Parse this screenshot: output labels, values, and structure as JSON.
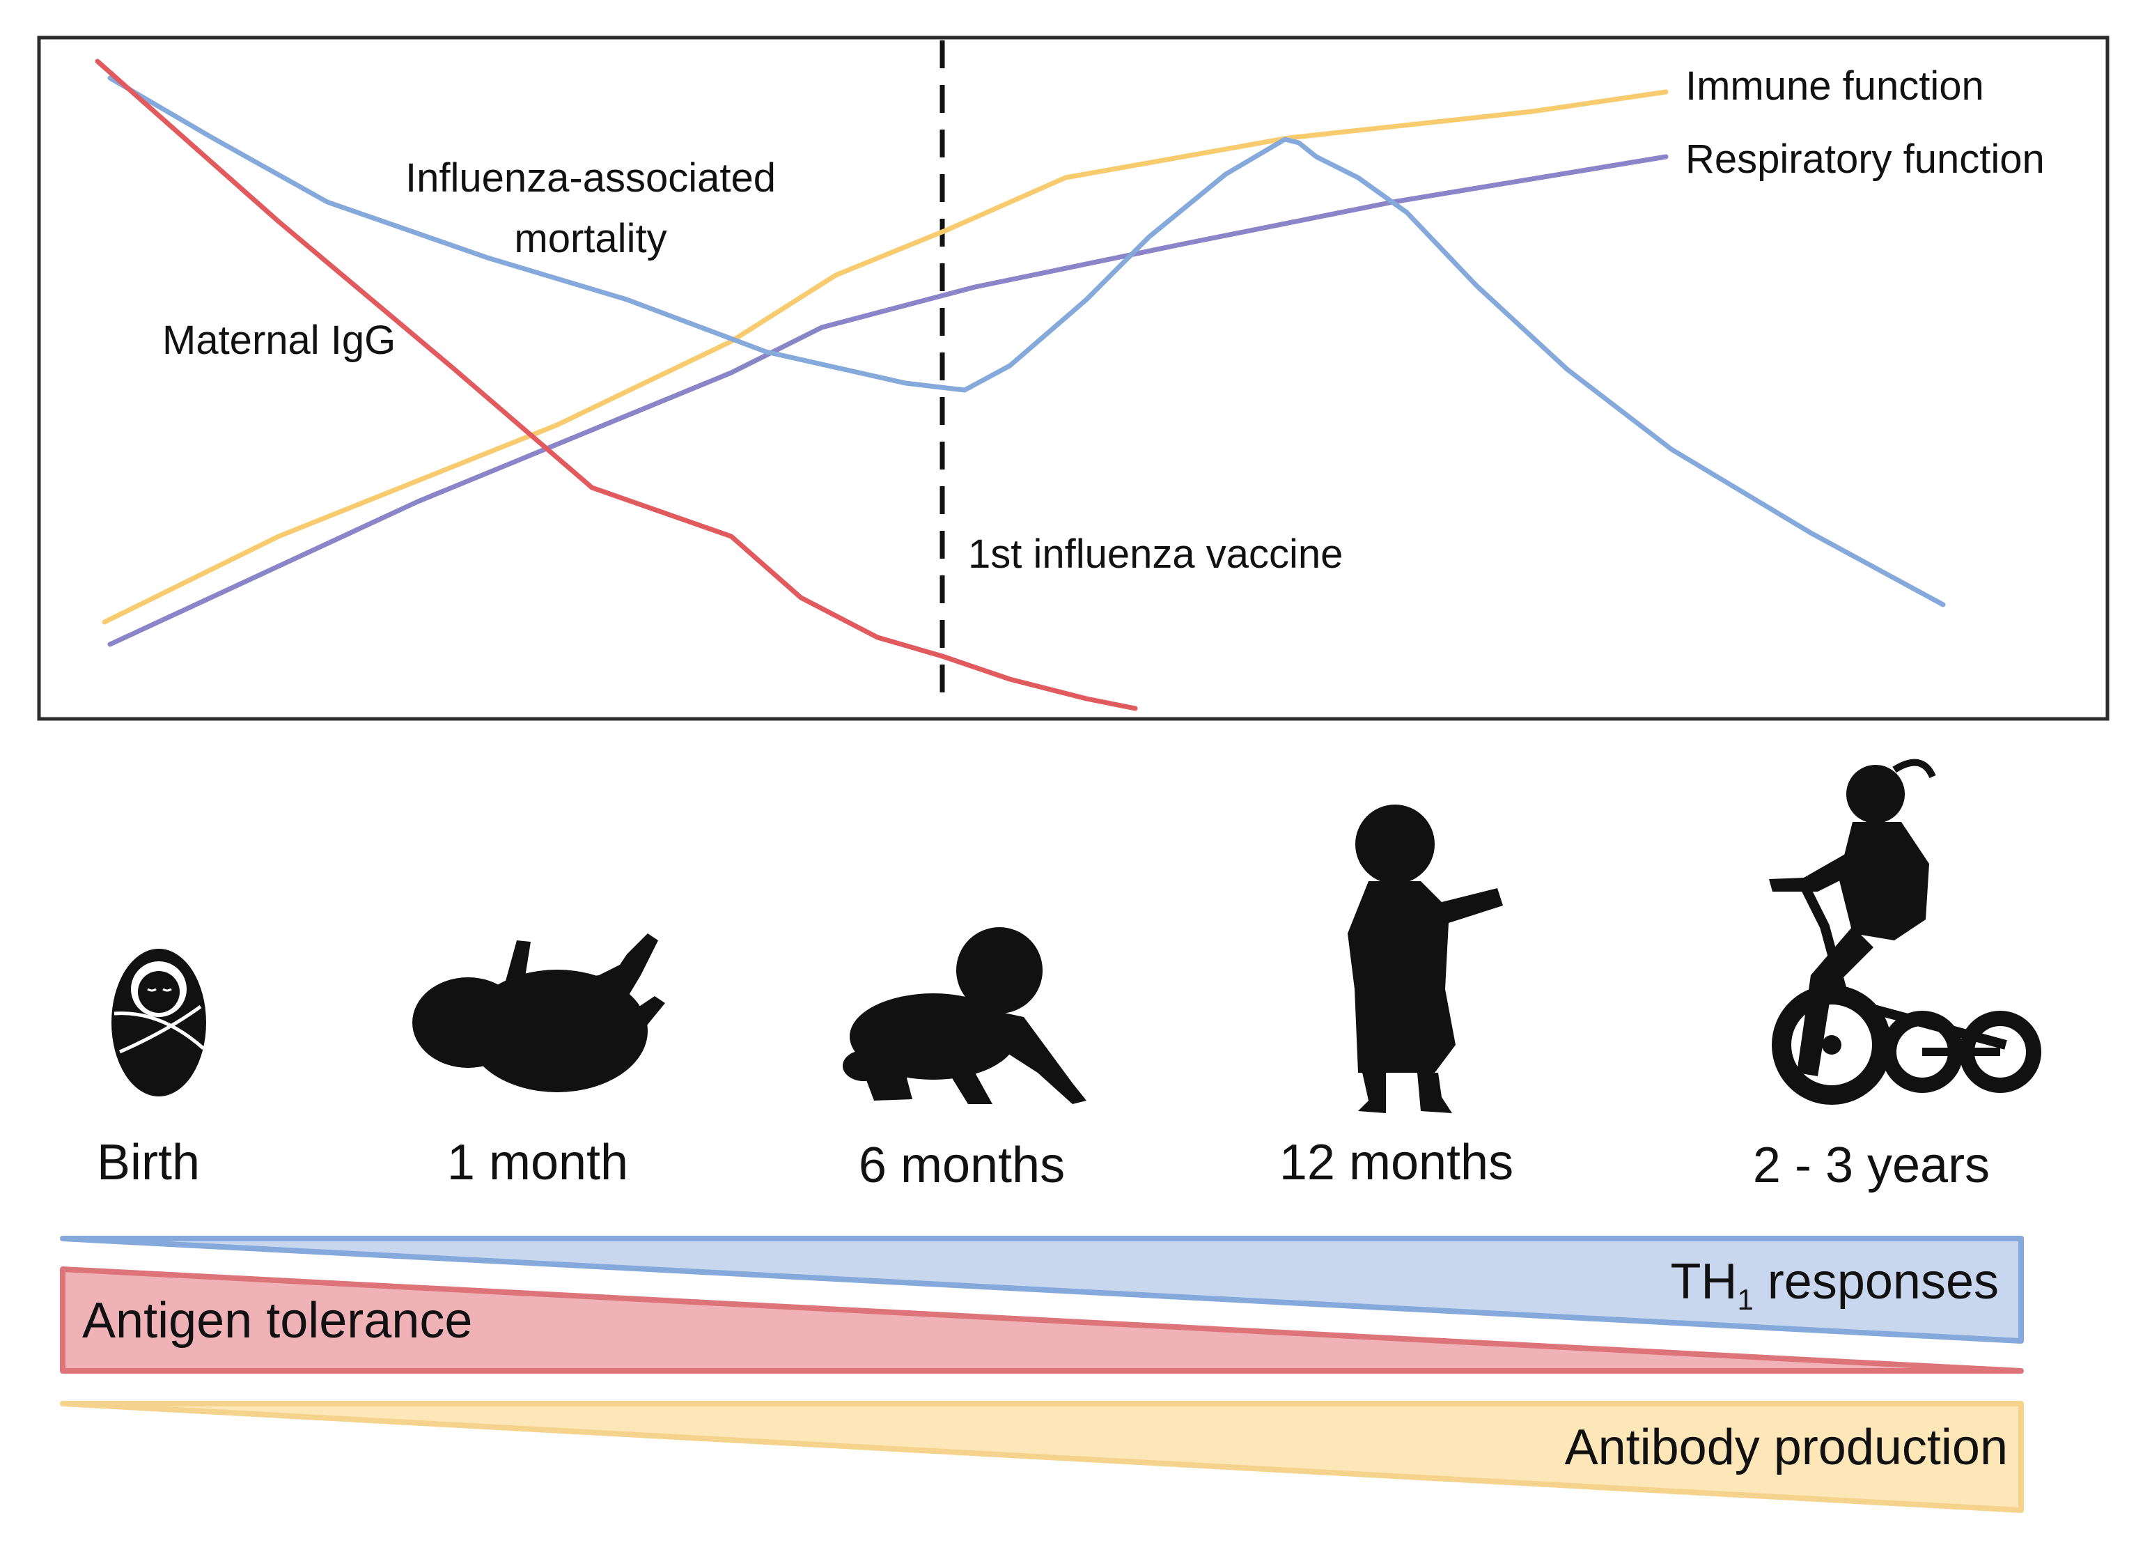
{
  "chart_data": {
    "type": "line",
    "series": [
      {
        "name": "Maternal IgG",
        "color": "#e05a5e"
      },
      {
        "name": "Influenza-associated mortality",
        "color": "#86a9dc"
      },
      {
        "name": "Immune function",
        "color": "#f8cb6f"
      },
      {
        "name": "Respiratory function",
        "color": "#8a84c8"
      }
    ],
    "annotations": {
      "maternal_igg": "Maternal IgG",
      "mortality_line1": "Influenza-associated",
      "mortality_line2": "mortality",
      "immune": "Immune function",
      "respiratory": "Respiratory function",
      "vaccine": "1st influenza vaccine"
    }
  },
  "timeline": {
    "ages": [
      "Birth",
      "1 month",
      "6 months",
      "12 months",
      "2 - 3 years"
    ]
  },
  "bars": {
    "th1": {
      "prefix": "TH",
      "subscript": "1",
      "suffix": " responses",
      "fill": "#c9d7ee",
      "stroke": "#86a9dc"
    },
    "tolerance": {
      "label": "Antigen tolerance",
      "fill": "#efb2b6",
      "stroke": "#dc7479"
    },
    "antibody": {
      "label": "Antibody production",
      "fill": "#fde6b8",
      "stroke": "#f6d38c"
    }
  }
}
